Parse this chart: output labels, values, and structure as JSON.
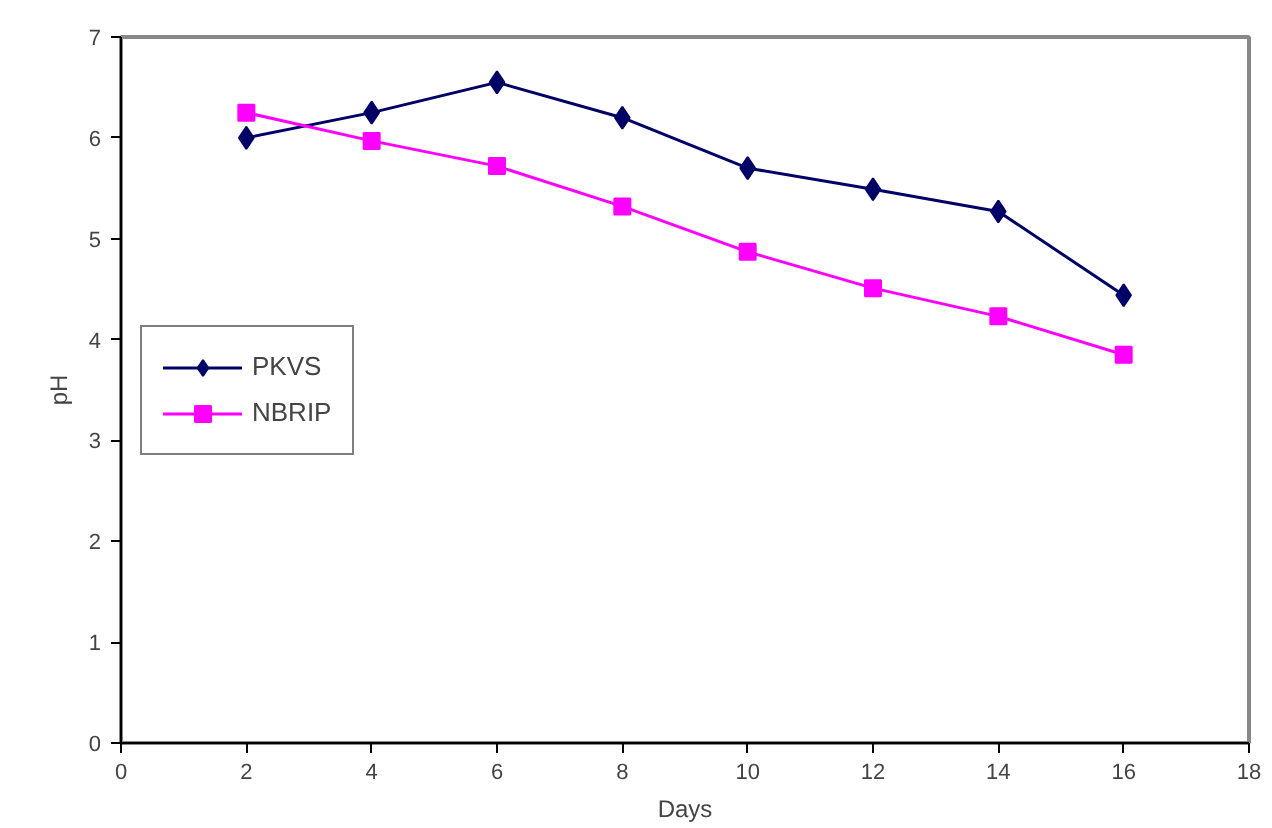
{
  "chart_data": {
    "type": "line",
    "xlabel": "Days",
    "ylabel": "pH",
    "x": [
      2,
      4,
      6,
      8,
      10,
      12,
      14,
      16
    ],
    "series": [
      {
        "name": "PKVS",
        "color": "#000066",
        "marker": "diamond",
        "values": [
          6.0,
          6.25,
          6.55,
          6.2,
          5.7,
          5.49,
          5.27,
          4.44
        ]
      },
      {
        "name": "NBRIP",
        "color": "#ff00ff",
        "marker": "square",
        "values": [
          6.25,
          5.97,
          5.72,
          5.32,
          4.87,
          4.51,
          4.23,
          3.85
        ]
      }
    ],
    "xlim": [
      0,
      18
    ],
    "xticks": [
      0,
      2,
      4,
      6,
      8,
      10,
      12,
      14,
      16,
      18
    ],
    "ylim": [
      0,
      7
    ],
    "yticks": [
      0,
      1,
      2,
      3,
      4,
      5,
      6,
      7
    ],
    "grid": false,
    "legend": "left",
    "line_style": "solid"
  }
}
